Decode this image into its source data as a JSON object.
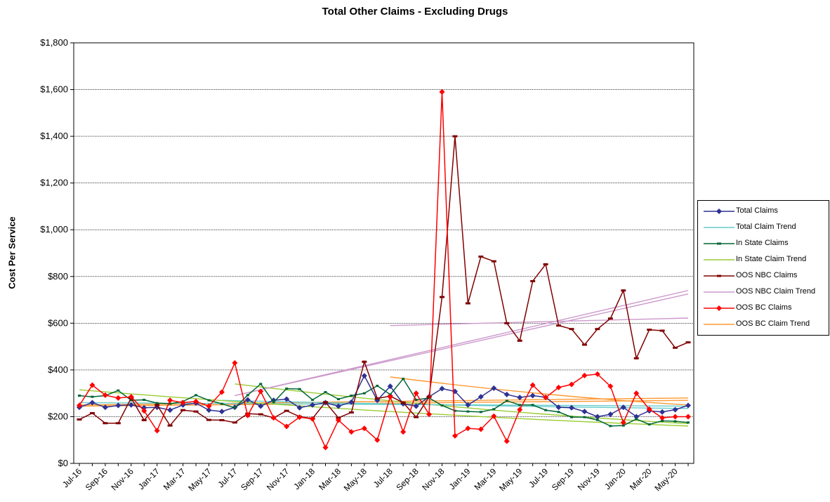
{
  "chart_data": {
    "type": "line",
    "title": "Total Other Claims - Excluding Drugs",
    "xlabel": "",
    "ylabel": "Cost Per Service",
    "ylim": [
      0,
      1800
    ],
    "yticks": [
      "$0",
      "$200",
      "$400",
      "$600",
      "$800",
      "$1,000",
      "$1,200",
      "$1,400",
      "$1,600",
      "$1,800"
    ],
    "ytick_values": [
      0,
      200,
      400,
      600,
      800,
      1000,
      1200,
      1400,
      1600,
      1800
    ],
    "grid": "horizontal",
    "legend_position": "right",
    "x_months": [
      "Jul-16",
      "Aug-16",
      "Sep-16",
      "Oct-16",
      "Nov-16",
      "Dec-16",
      "Jan-17",
      "Feb-17",
      "Mar-17",
      "Apr-17",
      "May-17",
      "Jun-17",
      "Jul-17",
      "Aug-17",
      "Sep-17",
      "Oct-17",
      "Nov-17",
      "Dec-17",
      "Jan-18",
      "Feb-18",
      "Mar-18",
      "Apr-18",
      "May-18",
      "Jun-18",
      "Jul-18",
      "Aug-18",
      "Sep-18",
      "Oct-18",
      "Nov-18",
      "Dec-18",
      "Jan-19",
      "Feb-19",
      "Mar-19",
      "Apr-19",
      "May-19",
      "Jun-19",
      "Jul-19",
      "Aug-19",
      "Sep-19",
      "Oct-19",
      "Nov-19",
      "Dec-19",
      "Jan-20",
      "Feb-20",
      "Mar-20",
      "Apr-20",
      "May-20",
      "Jun-20"
    ],
    "x_tick_labels": [
      "Jul-16",
      "Sep-16",
      "Nov-16",
      "Jan-17",
      "Mar-17",
      "May-17",
      "Jul-17",
      "Sep-17",
      "Nov-17",
      "Jan-18",
      "Mar-18",
      "May-18",
      "Jul-18",
      "Sep-18",
      "Nov-18",
      "Jan-19",
      "Mar-19",
      "May-19",
      "Jul-19",
      "Sep-19",
      "Nov-19",
      "Jan-20",
      "Mar-20",
      "May-20"
    ],
    "series": [
      {
        "name": "Total Claims",
        "color": "#2e3192",
        "marker": "diamond",
        "values": [
          240,
          260,
          240,
          248,
          250,
          238,
          240,
          228,
          250,
          258,
          228,
          222,
          240,
          272,
          245,
          270,
          275,
          238,
          250,
          260,
          245,
          262,
          375,
          270,
          330,
          255,
          245,
          285,
          320,
          308,
          250,
          285,
          322,
          295,
          282,
          290,
          283,
          240,
          238,
          222,
          200,
          210,
          240,
          200,
          225,
          220,
          230,
          248
        ]
      },
      {
        "name": "Total Claim Trend",
        "color": "#66cccc",
        "marker": "none",
        "type": "trend",
        "from": 11,
        "to": 47,
        "values_at_ends": [
          270,
          235
        ]
      },
      {
        "name": "In State Claims",
        "color": "#006633",
        "marker": "small",
        "values": [
          290,
          285,
          290,
          312,
          270,
          272,
          258,
          255,
          265,
          292,
          270,
          255,
          238,
          292,
          340,
          262,
          320,
          318,
          272,
          305,
          275,
          290,
          300,
          332,
          295,
          362,
          272,
          280,
          248,
          225,
          222,
          220,
          232,
          268,
          250,
          250,
          228,
          220,
          198,
          198,
          186,
          160,
          162,
          190,
          167,
          182,
          180,
          175
        ]
      },
      {
        "name": "In State Claim Trend",
        "color": "#99cc33",
        "marker": "none",
        "type": "trend",
        "from": 0,
        "to": 47,
        "values_at_ends": [
          315,
          160
        ]
      },
      {
        "name": "OOS NBC Claims",
        "color": "#800000",
        "marker": "dash",
        "values": [
          188,
          215,
          172,
          172,
          280,
          185,
          250,
          162,
          228,
          222,
          186,
          185,
          175,
          213,
          210,
          195,
          225,
          200,
          192,
          262,
          195,
          218,
          435,
          278,
          288,
          260,
          198,
          285,
          712,
          1400,
          685,
          885,
          865,
          600,
          525,
          780,
          852,
          590,
          575,
          508,
          575,
          620,
          740,
          450,
          572,
          568,
          495,
          518
        ]
      },
      {
        "name": "OOS NBC Claim Trend",
        "color": "#cc99cc",
        "marker": "none",
        "type": "trend",
        "from": 12,
        "to": 47,
        "values_at_ends": [
          290,
          740
        ]
      },
      {
        "name": "OOS BC Claims",
        "color": "#ff0000",
        "marker": "diamond",
        "values": [
          248,
          335,
          292,
          280,
          285,
          225,
          140,
          270,
          260,
          265,
          245,
          305,
          430,
          205,
          308,
          195,
          158,
          198,
          190,
          68,
          185,
          135,
          150,
          100,
          285,
          135,
          300,
          210,
          1590,
          118,
          150,
          146,
          202,
          95,
          230,
          335,
          282,
          325,
          338,
          376,
          382,
          330,
          175,
          300,
          232,
          195,
          200,
          200
        ]
      },
      {
        "name": "OOS BC Claim Trend",
        "color": "#ff9933",
        "marker": "none",
        "type": "trend",
        "from": 24,
        "to": 47,
        "values_at_ends": [
          370,
          250
        ]
      }
    ],
    "extra_trend_lines": [
      {
        "color": "#cc99cc",
        "from": 24,
        "to": 47,
        "values_at_ends": [
          590,
          622
        ]
      },
      {
        "color": "#cc99cc",
        "from": 12,
        "to": 47,
        "values_at_ends": [
          290,
          725
        ]
      },
      {
        "color": "#ff9933",
        "from": 0,
        "to": 47,
        "values_at_ends": [
          250,
          280
        ]
      },
      {
        "color": "#ff9933",
        "from": 0,
        "to": 47,
        "values_at_ends": [
          245,
          270
        ]
      },
      {
        "color": "#66cccc",
        "from": 0,
        "to": 47,
        "values_at_ends": [
          260,
          245
        ]
      },
      {
        "color": "#99cc33",
        "from": 12,
        "to": 47,
        "values_at_ends": [
          340,
          170
        ]
      }
    ]
  }
}
